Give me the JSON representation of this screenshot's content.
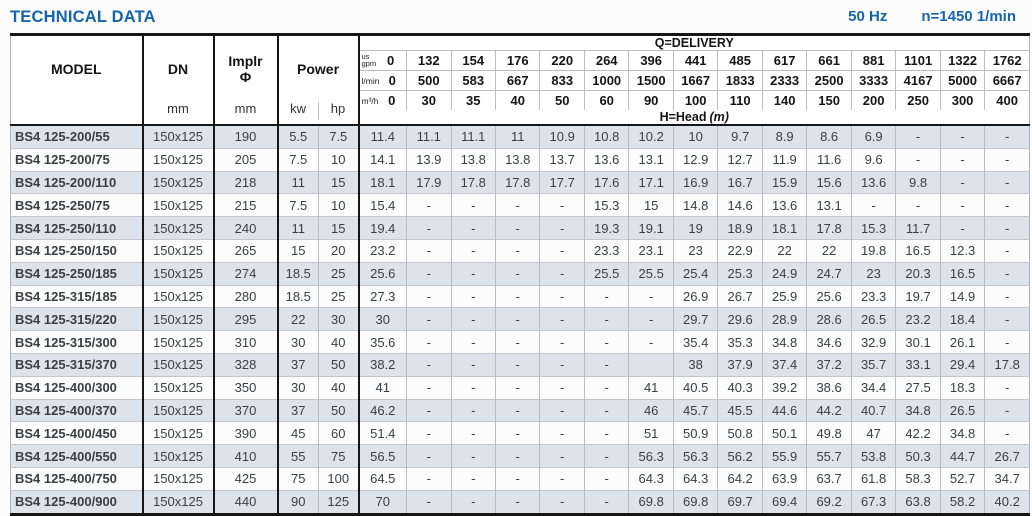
{
  "header": {
    "title": "TECHNICAL DATA",
    "frequency": "50 Hz",
    "speed": "n=1450 1/min"
  },
  "table": {
    "columns": {
      "model": "MODEL",
      "dn": "DN",
      "dn_unit": "mm",
      "impeller_line1": "Implr",
      "impeller_line2": "Φ",
      "impeller_unit": "mm",
      "power": "Power",
      "power_unit_kw": "kw",
      "power_unit_hp": "hp"
    },
    "delivery_label": "Q=DELIVERY",
    "head_label": "H=Head",
    "head_unit": "(m)",
    "flows": [
      {
        "unit_lines": [
          "us",
          "gpm"
        ],
        "values": [
          "0",
          "132",
          "154",
          "176",
          "220",
          "264",
          "396",
          "441",
          "485",
          "617",
          "661",
          "881",
          "1101",
          "1322",
          "1762"
        ]
      },
      {
        "unit_lines": [
          "l/min"
        ],
        "values": [
          "0",
          "500",
          "583",
          "667",
          "833",
          "1000",
          "1500",
          "1667",
          "1833",
          "2333",
          "2500",
          "3333",
          "4167",
          "5000",
          "6667"
        ]
      },
      {
        "unit_lines": [
          "m³/h"
        ],
        "values": [
          "0",
          "30",
          "35",
          "40",
          "50",
          "60",
          "90",
          "100",
          "110",
          "140",
          "150",
          "200",
          "250",
          "300",
          "400"
        ]
      }
    ],
    "rows": [
      {
        "model": "BS4 125-200/55",
        "dn": "150x125",
        "impeller": "190",
        "kw": "5.5",
        "hp": "7.5",
        "head": [
          "11.4",
          "11.1",
          "11.1",
          "11",
          "10.9",
          "10.8",
          "10.2",
          "10",
          "9.7",
          "8.9",
          "8.6",
          "6.9",
          "-",
          "-",
          "-"
        ]
      },
      {
        "model": "BS4 125-200/75",
        "dn": "150x125",
        "impeller": "205",
        "kw": "7.5",
        "hp": "10",
        "head": [
          "14.1",
          "13.9",
          "13.8",
          "13.8",
          "13.7",
          "13.6",
          "13.1",
          "12.9",
          "12.7",
          "11.9",
          "11.6",
          "9.6",
          "-",
          "-",
          "-"
        ]
      },
      {
        "model": "BS4 125-200/110",
        "dn": "150x125",
        "impeller": "218",
        "kw": "11",
        "hp": "15",
        "head": [
          "18.1",
          "17.9",
          "17.8",
          "17.8",
          "17.7",
          "17.6",
          "17.1",
          "16.9",
          "16.7",
          "15.9",
          "15.6",
          "13.6",
          "9.8",
          "-",
          "-"
        ]
      },
      {
        "model": "BS4 125-250/75",
        "dn": "150x125",
        "impeller": "215",
        "kw": "7.5",
        "hp": "10",
        "head": [
          "15.4",
          "-",
          "-",
          "-",
          "-",
          "15.3",
          "15",
          "14.8",
          "14.6",
          "13.6",
          "13.1",
          "-",
          "-",
          "-",
          "-"
        ]
      },
      {
        "model": "BS4 125-250/110",
        "dn": "150x125",
        "impeller": "240",
        "kw": "11",
        "hp": "15",
        "head": [
          "19.4",
          "-",
          "-",
          "-",
          "-",
          "19.3",
          "19.1",
          "19",
          "18.9",
          "18.1",
          "17.8",
          "15.3",
          "11.7",
          "-",
          "-"
        ]
      },
      {
        "model": "BS4 125-250/150",
        "dn": "150x125",
        "impeller": "265",
        "kw": "15",
        "hp": "20",
        "head": [
          "23.2",
          "-",
          "-",
          "-",
          "-",
          "23.3",
          "23.1",
          "23",
          "22.9",
          "22",
          "22",
          "19.8",
          "16.5",
          "12.3",
          "-"
        ]
      },
      {
        "model": "BS4 125-250/185",
        "dn": "150x125",
        "impeller": "274",
        "kw": "18.5",
        "hp": "25",
        "head": [
          "25.6",
          "-",
          "-",
          "-",
          "-",
          "25.5",
          "25.5",
          "25.4",
          "25.3",
          "24.9",
          "24.7",
          "23",
          "20.3",
          "16.5",
          "-"
        ]
      },
      {
        "model": "BS4 125-315/185",
        "dn": "150x125",
        "impeller": "280",
        "kw": "18.5",
        "hp": "25",
        "head": [
          "27.3",
          "-",
          "-",
          "-",
          "-",
          "-",
          "-",
          "26.9",
          "26.7",
          "25.9",
          "25.6",
          "23.3",
          "19.7",
          "14.9",
          "-"
        ]
      },
      {
        "model": "BS4 125-315/220",
        "dn": "150x125",
        "impeller": "295",
        "kw": "22",
        "hp": "30",
        "head": [
          "30",
          "-",
          "-",
          "-",
          "-",
          "-",
          "-",
          "29.7",
          "29.6",
          "28.9",
          "28.6",
          "26.5",
          "23.2",
          "18.4",
          "-"
        ]
      },
      {
        "model": "BS4 125-315/300",
        "dn": "150x125",
        "impeller": "310",
        "kw": "30",
        "hp": "40",
        "head": [
          "35.6",
          "-",
          "-",
          "-",
          "-",
          "-",
          "-",
          "35.4",
          "35.3",
          "34.8",
          "34.6",
          "32.9",
          "30.1",
          "26.1",
          "-"
        ]
      },
      {
        "model": "BS4 125-315/370",
        "dn": "150x125",
        "impeller": "328",
        "kw": "37",
        "hp": "50",
        "head": [
          "38.2",
          "-",
          "-",
          "-",
          "-",
          "-",
          "",
          "38",
          "37.9",
          "37.4",
          "37.2",
          "35.7",
          "33.1",
          "29.4",
          "17.8"
        ]
      },
      {
        "model": "BS4 125-400/300",
        "dn": "150x125",
        "impeller": "350",
        "kw": "30",
        "hp": "40",
        "head": [
          "41",
          "-",
          "-",
          "-",
          "-",
          "-",
          "41",
          "40.5",
          "40.3",
          "39.2",
          "38.6",
          "34.4",
          "27.5",
          "18.3",
          "-"
        ]
      },
      {
        "model": "BS4 125-400/370",
        "dn": "150x125",
        "impeller": "370",
        "kw": "37",
        "hp": "50",
        "head": [
          "46.2",
          "-",
          "-",
          "-",
          "-",
          "-",
          "46",
          "45.7",
          "45.5",
          "44.6",
          "44.2",
          "40.7",
          "34.8",
          "26.5",
          "-"
        ]
      },
      {
        "model": "BS4 125-400/450",
        "dn": "150x125",
        "impeller": "390",
        "kw": "45",
        "hp": "60",
        "head": [
          "51.4",
          "-",
          "-",
          "-",
          "-",
          "-",
          "51",
          "50.9",
          "50.8",
          "50.1",
          "49.8",
          "47",
          "42.2",
          "34.8",
          "-"
        ]
      },
      {
        "model": "BS4 125-400/550",
        "dn": "150x125",
        "impeller": "410",
        "kw": "55",
        "hp": "75",
        "head": [
          "56.5",
          "-",
          "-",
          "-",
          "-",
          "-",
          "56.3",
          "56.3",
          "56.2",
          "55.9",
          "55.7",
          "53.8",
          "50.3",
          "44.7",
          "26.7"
        ]
      },
      {
        "model": "BS4 125-400/750",
        "dn": "150x125",
        "impeller": "425",
        "kw": "75",
        "hp": "100",
        "head": [
          "64.5",
          "-",
          "-",
          "-",
          "-",
          "-",
          "64.3",
          "64.3",
          "64.2",
          "63.9",
          "63.7",
          "61.8",
          "58.3",
          "52.7",
          "34.7"
        ]
      },
      {
        "model": "BS4 125-400/900",
        "dn": "150x125",
        "impeller": "440",
        "kw": "90",
        "hp": "125",
        "head": [
          "70",
          "-",
          "-",
          "-",
          "-",
          "-",
          "69.8",
          "69.8",
          "69.7",
          "69.4",
          "69.2",
          "67.3",
          "63.8",
          "58.2",
          "40.2"
        ]
      }
    ]
  }
}
